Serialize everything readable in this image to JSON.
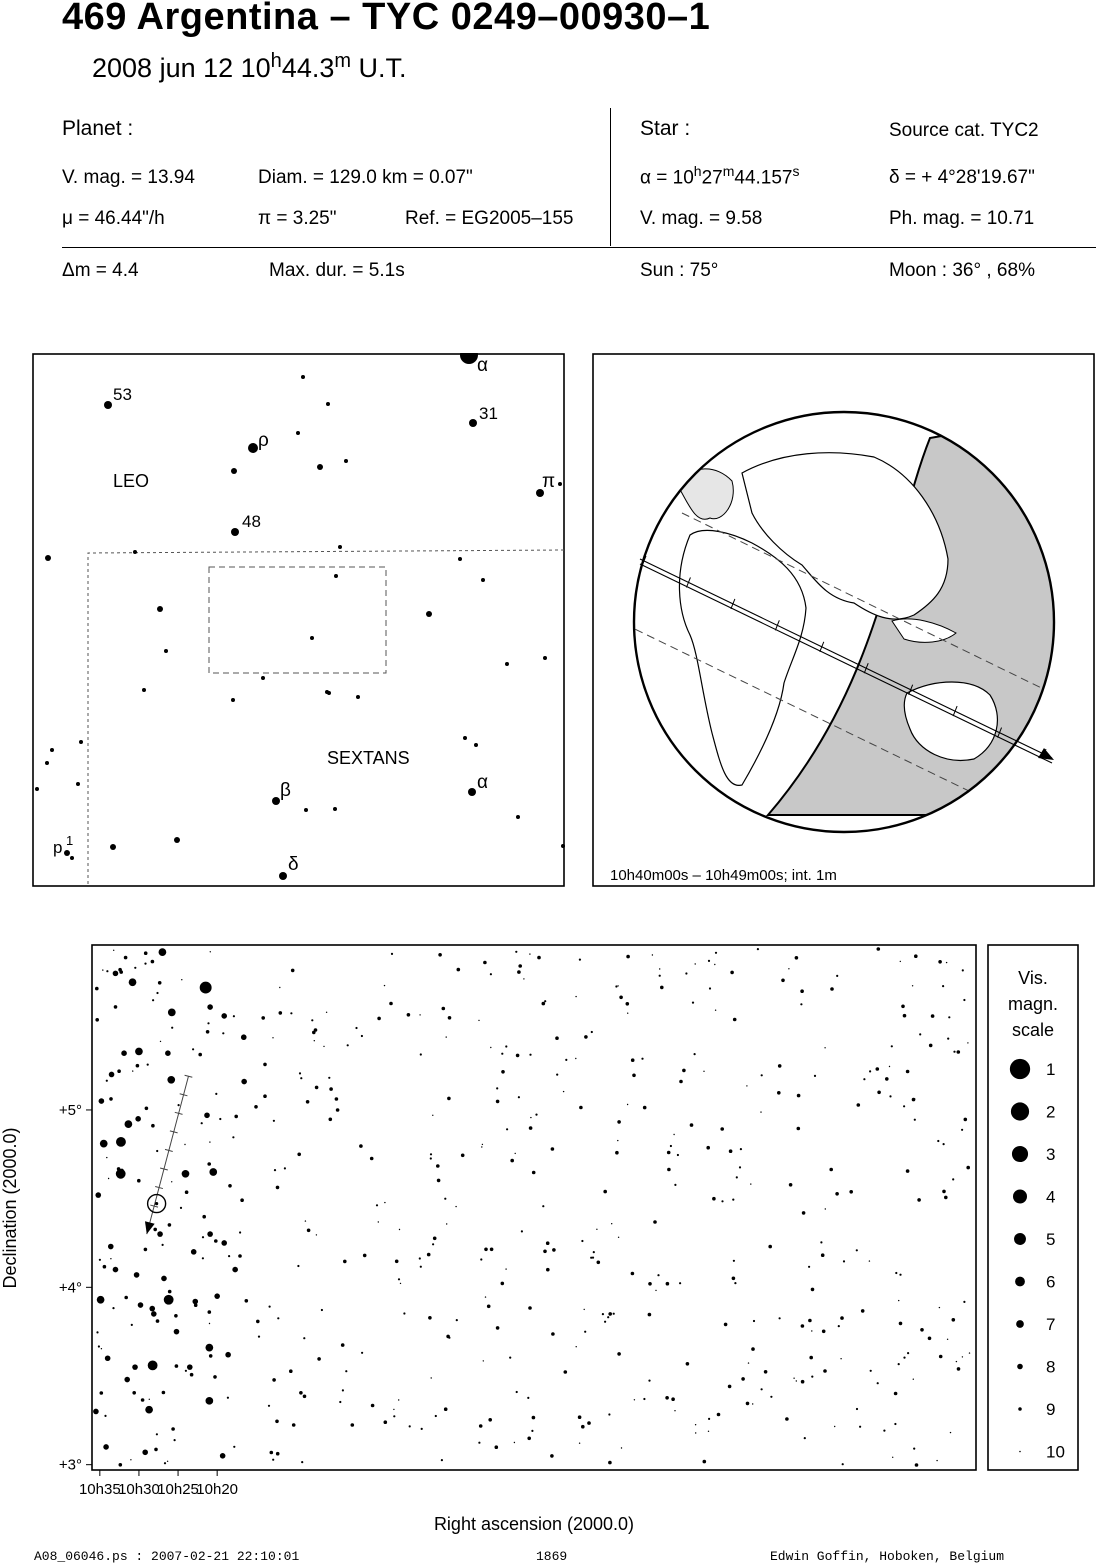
{
  "header": {
    "title": "469 Argentina  –  TYC 0249–00930–1",
    "date": "2008 jun 12  10",
    "hour_unit": "h",
    "minutes": "44.3",
    "minute_unit": "m",
    "ut": " U.T."
  },
  "planet": {
    "heading": "Planet :",
    "vmag": "V. mag. = 13.94",
    "diam": "Diam. = 129.0 km = 0.07\"",
    "mu": "μ =  46.44\"/h",
    "pi": "π =  3.25\"",
    "ref": "Ref. = EG2005–155"
  },
  "star": {
    "heading": "Star :",
    "source": "Source cat.  TYC2",
    "alpha_prefix": "α = 10",
    "alpha_h": "h",
    "alpha_min": "27",
    "alpha_m": "m",
    "alpha_sec": "44.157",
    "alpha_s": "s",
    "delta": "δ = + 4°28'19.67\"",
    "vmag": "V. mag. =  9.58",
    "phmag": "Ph. mag. = 10.71"
  },
  "event": {
    "dm": "Δm = 4.4",
    "maxdur": "Max. dur. = 5.1s",
    "sun": "Sun :  75°",
    "moon": "Moon :  36° , 68%"
  },
  "finder_chart": {
    "constellations": [
      "LEO",
      "SEXTANS"
    ],
    "star_labels": [
      "α",
      "53",
      "31",
      "ρ",
      "π",
      "48",
      "α",
      "β",
      "δ",
      "p",
      "1"
    ]
  },
  "globe": {
    "caption": "10h40m00s – 10h49m00s; int.  1m",
    "interval_minutes": 1
  },
  "chart_data": {
    "type": "scatter",
    "title": "",
    "xlabel": "Right ascension (2000.0)",
    "ylabel": "Declination (2000.0)",
    "x_ticks": [
      "10h35",
      "10h30",
      "10h25",
      "10h20"
    ],
    "y_ticks": [
      "+5°",
      "+4°",
      "+3°"
    ],
    "xlim_min": [
      636,
      523
    ],
    "ylim_deg": [
      2.97,
      5.93
    ],
    "target_star": {
      "ra_min": 627.74,
      "dec_deg": 4.472
    },
    "path": {
      "start": {
        "ra_min": 623.67,
        "dec_deg": 5.19
      },
      "end": {
        "ra_min": 629.0,
        "dec_deg": 4.3
      },
      "ticks": 9
    },
    "stars": [
      {
        "ra_min": 621.47,
        "dec_deg": 5.69,
        "mag": 5
      },
      {
        "ra_min": 630.82,
        "dec_deg": 5.72,
        "mag": 7
      },
      {
        "ra_min": 630.0,
        "dec_deg": 5.33,
        "mag": 7
      },
      {
        "ra_min": 632.3,
        "dec_deg": 4.82,
        "mag": 6
      },
      {
        "ra_min": 632.33,
        "dec_deg": 4.64,
        "mag": 6
      },
      {
        "ra_min": 626.2,
        "dec_deg": 3.93,
        "mag": 6
      },
      {
        "ra_min": 628.25,
        "dec_deg": 3.56,
        "mag": 6
      },
      {
        "ra_min": 627.0,
        "dec_deg": 5.89,
        "mag": 7
      },
      {
        "ra_min": 625.8,
        "dec_deg": 5.55,
        "mag": 7
      },
      {
        "ra_min": 625.87,
        "dec_deg": 5.17,
        "mag": 7
      },
      {
        "ra_min": 624.05,
        "dec_deg": 4.64,
        "mag": 7
      },
      {
        "ra_min": 620.5,
        "dec_deg": 4.65,
        "mag": 7
      },
      {
        "ra_min": 634.5,
        "dec_deg": 4.81,
        "mag": 7
      },
      {
        "ra_min": 631.35,
        "dec_deg": 4.92,
        "mag": 7
      },
      {
        "ra_min": 634.9,
        "dec_deg": 3.93,
        "mag": 7
      },
      {
        "ra_min": 633.0,
        "dec_deg": 4.1,
        "mag": 8
      },
      {
        "ra_min": 621.0,
        "dec_deg": 3.66,
        "mag": 7
      },
      {
        "ra_min": 628.7,
        "dec_deg": 3.31,
        "mag": 7
      },
      {
        "ra_min": 621.0,
        "dec_deg": 3.36,
        "mag": 7
      },
      {
        "ra_min": 628.1,
        "dec_deg": 3.85,
        "mag": 8
      },
      {
        "ra_min": 633.0,
        "dec_deg": 5.77,
        "mag": 8
      },
      {
        "ra_min": 630.5,
        "dec_deg": 3.55,
        "mag": 8
      },
      {
        "ra_min": 623.5,
        "dec_deg": 3.55,
        "mag": 8
      },
      {
        "ra_min": 618.6,
        "dec_deg": 3.62,
        "mag": 8
      },
      {
        "ra_min": 620.9,
        "dec_deg": 4.3,
        "mag": 8
      },
      {
        "ra_min": 619.1,
        "dec_deg": 4.25,
        "mag": 8
      },
      {
        "ra_min": 630.3,
        "dec_deg": 4.07,
        "mag": 8
      },
      {
        "ra_min": 631.5,
        "dec_deg": 3.48,
        "mag": 8
      },
      {
        "ra_min": 634.0,
        "dec_deg": 3.6,
        "mag": 8
      },
      {
        "ra_min": 635.5,
        "dec_deg": 3.3,
        "mag": 8
      },
      {
        "ra_min": 633.6,
        "dec_deg": 4.23,
        "mag": 8
      },
      {
        "ra_min": 626.8,
        "dec_deg": 4.05,
        "mag": 8
      },
      {
        "ra_min": 626.3,
        "dec_deg": 5.32,
        "mag": 8
      },
      {
        "ra_min": 617.3,
        "dec_deg": 5.95,
        "mag": 8
      },
      {
        "ra_min": 616.6,
        "dec_deg": 5.41,
        "mag": 8
      },
      {
        "ra_min": 616.55,
        "dec_deg": 5.16,
        "mag": 8
      },
      {
        "ra_min": 631.9,
        "dec_deg": 5.32,
        "mag": 8
      },
      {
        "ra_min": 620.9,
        "dec_deg": 5.58,
        "mag": 8
      },
      {
        "ra_min": 619.1,
        "dec_deg": 5.53,
        "mag": 8
      },
      {
        "ra_min": 634.8,
        "dec_deg": 5.05,
        "mag": 8
      },
      {
        "ra_min": 635.2,
        "dec_deg": 4.52,
        "mag": 8
      },
      {
        "ra_min": 633.5,
        "dec_deg": 5.2,
        "mag": 8
      },
      {
        "ra_min": 636.0,
        "dec_deg": 4.93,
        "mag": 8
      },
      {
        "ra_min": 628.3,
        "dec_deg": 3.88,
        "mag": 8
      },
      {
        "ra_min": 627.3,
        "dec_deg": 4.3,
        "mag": 8
      },
      {
        "ra_min": 629.8,
        "dec_deg": 3.9,
        "mag": 8
      },
      {
        "ra_min": 634.2,
        "dec_deg": 3.1,
        "mag": 8
      },
      {
        "ra_min": 629.2,
        "dec_deg": 3.07,
        "mag": 8
      },
      {
        "ra_min": 625.2,
        "dec_deg": 3.75,
        "mag": 8
      },
      {
        "ra_min": 622.8,
        "dec_deg": 3.92,
        "mag": 8
      },
      {
        "ra_min": 620.0,
        "dec_deg": 3.95,
        "mag": 8
      },
      {
        "ra_min": 621.3,
        "dec_deg": 4.97,
        "mag": 8
      },
      {
        "ra_min": 630.1,
        "dec_deg": 4.95,
        "mag": 8
      },
      {
        "ra_min": 623.0,
        "dec_deg": 4.2,
        "mag": 8
      },
      {
        "ra_min": 617.7,
        "dec_deg": 4.1,
        "mag": 8
      },
      {
        "ra_min": 619.3,
        "dec_deg": 3.05,
        "mag": 8
      }
    ]
  },
  "mag_scale": {
    "title": [
      "Vis.",
      "magn.",
      "scale"
    ],
    "labels": [
      "1",
      "2",
      "3",
      "4",
      "5",
      "6",
      "7",
      "8",
      "9",
      "10"
    ]
  },
  "footer": {
    "left": "A08_06046.ps : 2007-02-21 22:10:01",
    "center": "1869",
    "right": "Edwin Goffin, Hoboken, Belgium"
  }
}
